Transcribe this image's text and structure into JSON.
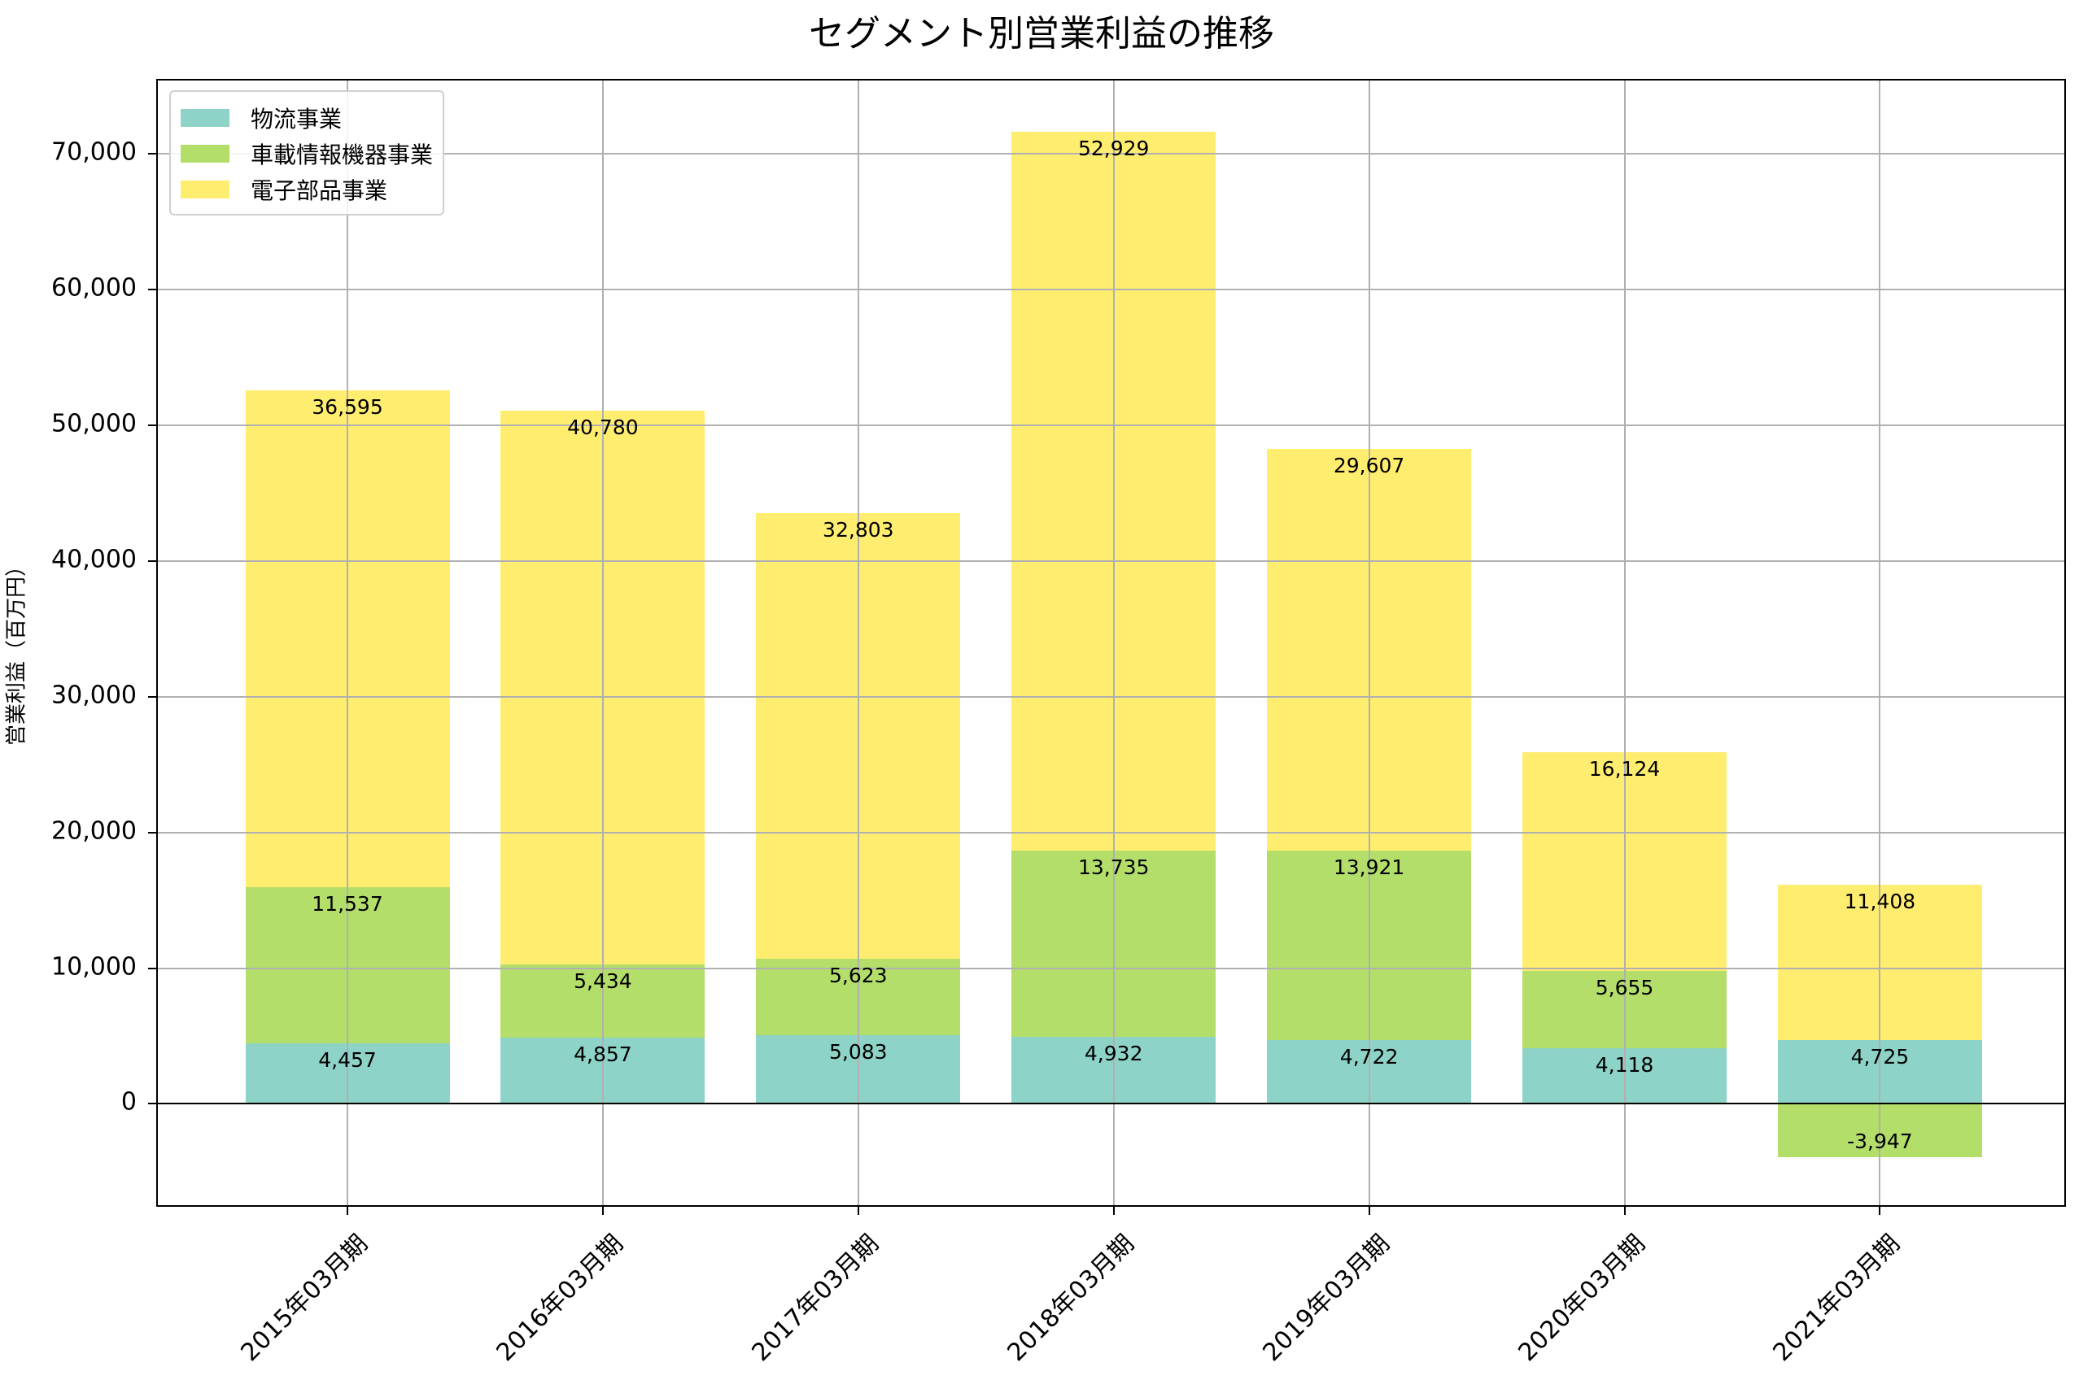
{
  "title": "セグメント別営業利益の推移",
  "ylabel": "営業利益（百万円）",
  "legend": [
    {
      "label": "物流事業",
      "color": "#8dd3c7"
    },
    {
      "label": "車載情報機器事業",
      "color": "#b3de69"
    },
    {
      "label": "電子部品事業",
      "color": "#ffed6f"
    }
  ],
  "yticks": [
    "0",
    "10,000",
    "20,000",
    "30,000",
    "40,000",
    "50,000",
    "60,000",
    "70,000"
  ],
  "xticks": [
    "2015年03月期",
    "2016年03月期",
    "2017年03月期",
    "2018年03月期",
    "2019年03月期",
    "2020年03月期",
    "2021年03月期"
  ],
  "chart_data": {
    "type": "bar",
    "stacked": true,
    "title": "セグメント別営業利益の推移",
    "xlabel": "",
    "ylabel": "営業利益（百万円）",
    "categories": [
      "2015年03月期",
      "2016年03月期",
      "2017年03月期",
      "2018年03月期",
      "2019年03月期",
      "2020年03月期",
      "2021年03月期"
    ],
    "series": [
      {
        "name": "物流事業",
        "color": "#8dd3c7",
        "values": [
          4457,
          4857,
          5083,
          4932,
          4722,
          4118,
          4725
        ]
      },
      {
        "name": "車載情報機器事業",
        "color": "#b3de69",
        "values": [
          11537,
          5434,
          5623,
          13735,
          13921,
          5655,
          -3947
        ]
      },
      {
        "name": "電子部品事業",
        "color": "#ffed6f",
        "values": [
          36595,
          40780,
          32803,
          52929,
          29607,
          16124,
          11408
        ]
      }
    ],
    "data_labels": {
      "物流事業": [
        "4,457",
        "4,857",
        "5,083",
        "4,932",
        "4,722",
        "4,118",
        "4,725"
      ],
      "車載情報機器事業": [
        "11,537",
        "5,434",
        "5,623",
        "13,735",
        "13,921",
        "5,655",
        "-3,947"
      ],
      "電子部品事業": [
        "36,595",
        "40,780",
        "32,803",
        "52,929",
        "29,607",
        "16,124",
        "11,408"
      ]
    },
    "ylim": [
      -7700,
      75400
    ],
    "yticks": [
      0,
      10000,
      20000,
      30000,
      40000,
      50000,
      60000,
      70000
    ],
    "grid": true,
    "legend_position": "upper left"
  }
}
